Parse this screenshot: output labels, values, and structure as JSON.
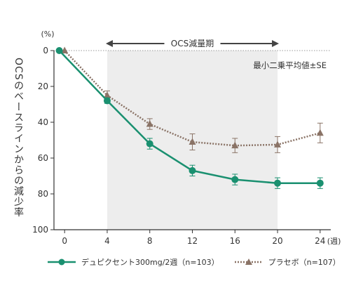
{
  "chart_data": {
    "type": "line",
    "title": "",
    "ylabel": "OCSのベースラインからの減少率",
    "yunit": "(%)",
    "xunit": "(週)",
    "y_reversed": true,
    "ylim": [
      0,
      100
    ],
    "yticks": [
      "0",
      "20",
      "40",
      "60",
      "80",
      "100"
    ],
    "xticks": [
      "0",
      "4",
      "8",
      "12",
      "16",
      "20",
      "24"
    ],
    "xlim": [
      -1,
      25
    ],
    "shaded_region": {
      "label": "OCS減量期",
      "x_start": 4,
      "x_end": 20
    },
    "annotation": "最小二乗平均値±SE",
    "series": [
      {
        "name": "デュピクセント300mg/2週（n=103）",
        "color": "#1a9070",
        "marker": "circle",
        "line_style": "solid",
        "x": [
          -0.5,
          4,
          8,
          12,
          16,
          20,
          24
        ],
        "y": [
          0,
          28,
          52,
          67,
          72,
          74,
          74
        ],
        "se": [
          0,
          1.5,
          3,
          3,
          3,
          3,
          3
        ]
      },
      {
        "name": "プラセボ（n=107）",
        "color": "#8a7366",
        "marker": "triangle",
        "line_style": "dotted",
        "x": [
          0,
          4,
          8,
          12,
          16,
          20,
          24
        ],
        "y": [
          0,
          25,
          41,
          51,
          53,
          52.5,
          46
        ],
        "se": [
          0,
          2.5,
          3,
          4.5,
          4,
          4.5,
          5.5
        ]
      }
    ]
  }
}
